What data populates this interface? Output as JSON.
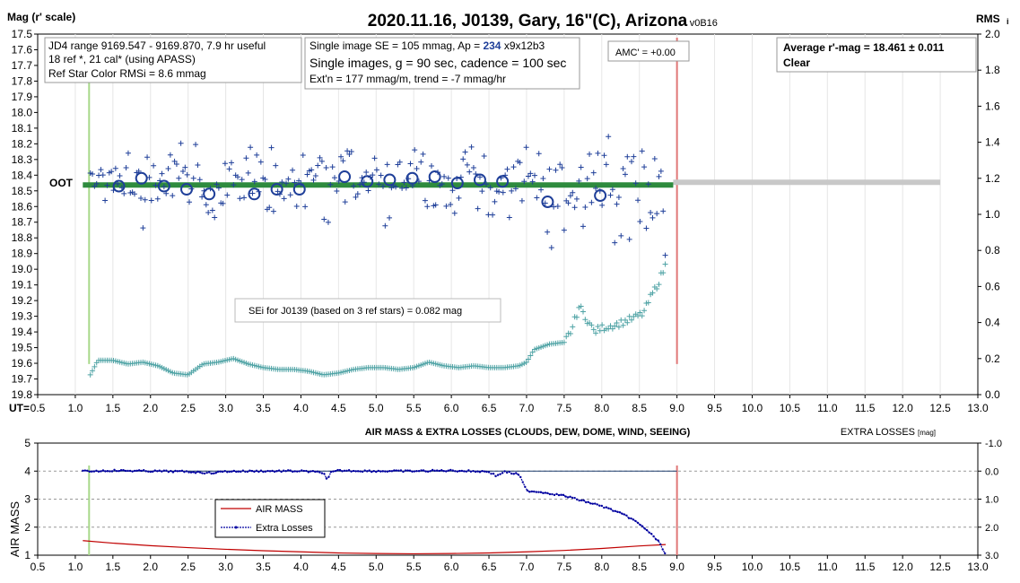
{
  "top_chart": {
    "title": "2020.11.16, J0139, Gary, 16\"(C), Arizona",
    "version": "- v0B16",
    "ylabel_left": "Mag (r' scale)",
    "ylabel_right": "RMS",
    "ylabel_right_sub": "i",
    "xlabel_prefix": "UT=",
    "info_box_1": {
      "line1": "JD4 range 9169.547 - 9169.870, 7.9 hr useful",
      "line2": "18 ref *, 21 cal* (using APASS)",
      "line3": "Ref Star Color RMSi = 8.6 mmag"
    },
    "info_box_2": {
      "line1_prefix": "Single image SE = 105 mmag, Ap = ",
      "line1_ap": "234",
      "line1_suffix": " x9x12b3",
      "line2": "Single images, g = 90 sec, cadence = 100 sec",
      "line3": "Ext'n = 177 mmag/m, trend = -7 mmag/hr"
    },
    "amc_label": "AMC' = +0.00",
    "avg_box": {
      "line1": "Average r'-mag =  18.461 ± 0.011",
      "line2": "Clear"
    },
    "oot_label": "OOT",
    "sei_label": "SEi for J0139 (based on 3 ref stars) = 0.082 mag"
  },
  "bottom_chart": {
    "title": "AIR MASS & EXTRA LOSSES (CLOUDS, DEW, DOME, WIND, SEEING)",
    "ylabel_left": "AIR MASS",
    "ylabel_right": "EXTRA LOSSES",
    "ylabel_right_unit": "[mag]",
    "legend_airmass": "AIR MASS",
    "legend_losses": "Extra Losses"
  },
  "colors": {
    "data_points": "#1f3f99",
    "rms_points": "#4fa3a5",
    "oot_band": "#2e8b3e",
    "oot_gray": "#c8c8c8",
    "start_line": "#a8d88a",
    "end_line": "#e07878",
    "airmass_line": "#c00000",
    "losses_line": "#0000a0"
  },
  "chart_data": [
    {
      "type": "scatter",
      "x_range": [
        0.5,
        13.0
      ],
      "y_left_range": [
        17.5,
        19.8
      ],
      "y_left_inverted": true,
      "y_right_range": [
        0.0,
        2.0
      ],
      "x_ticks": [
        "0.5",
        "1.0",
        "1.5",
        "2.0",
        "2.5",
        "3.0",
        "3.5",
        "4.0",
        "4.5",
        "5.0",
        "5.5",
        "6.0",
        "6.5",
        "7.0",
        "7.5",
        "8.0",
        "8.5",
        "9.0",
        "9.5",
        "10.0",
        "10.5",
        "11.0",
        "11.5",
        "12.0",
        "12.5",
        "13.0"
      ],
      "y_left_ticks": [
        "17.5",
        "17.6",
        "17.7",
        "17.8",
        "17.9",
        "18.0",
        "18.1",
        "18.2",
        "18.3",
        "18.4",
        "18.5",
        "18.6",
        "18.7",
        "18.8",
        "18.9",
        "19.0",
        "19.1",
        "19.2",
        "19.3",
        "19.4",
        "19.5",
        "19.6",
        "19.7",
        "19.8"
      ],
      "y_right_ticks": [
        "0.0",
        "0.2",
        "0.4",
        "0.6",
        "0.8",
        "1.0",
        "1.2",
        "1.4",
        "1.6",
        "1.8",
        "2.0"
      ],
      "oot_level": 18.46,
      "oot_x_range": [
        1.1,
        8.95
      ],
      "oot_gray_x_range": [
        8.95,
        12.5
      ],
      "start_ut": 1.1,
      "end_ut": 9.0,
      "averages": {
        "x": [
          1.58,
          1.88,
          2.18,
          2.48,
          2.78,
          3.38,
          3.68,
          3.98,
          4.58,
          4.88,
          5.18,
          5.48,
          5.78,
          6.08,
          6.38,
          6.68,
          7.28,
          7.98
        ],
        "y": [
          18.47,
          18.42,
          18.47,
          18.49,
          18.52,
          18.52,
          18.49,
          18.49,
          18.41,
          18.44,
          18.43,
          18.42,
          18.41,
          18.45,
          18.43,
          18.44,
          18.57,
          18.53
        ]
      },
      "rms_series": {
        "x": [
          1.2,
          1.3,
          1.5,
          1.7,
          1.9,
          2.1,
          2.3,
          2.5,
          2.7,
          2.9,
          3.1,
          3.3,
          3.5,
          3.7,
          3.9,
          4.1,
          4.3,
          4.5,
          4.7,
          4.9,
          5.1,
          5.3,
          5.5,
          5.7,
          5.9,
          6.1,
          6.3,
          6.5,
          6.7,
          6.9,
          7.0,
          7.1,
          7.3,
          7.5,
          7.6,
          7.7,
          7.8,
          7.9,
          8.0,
          8.2,
          8.4,
          8.55,
          8.65,
          8.75,
          8.85
        ],
        "y": [
          0.11,
          0.19,
          0.19,
          0.17,
          0.18,
          0.16,
          0.12,
          0.11,
          0.17,
          0.18,
          0.2,
          0.17,
          0.15,
          0.14,
          0.14,
          0.13,
          0.11,
          0.12,
          0.14,
          0.15,
          0.15,
          0.14,
          0.15,
          0.18,
          0.16,
          0.15,
          0.16,
          0.15,
          0.15,
          0.16,
          0.18,
          0.25,
          0.28,
          0.29,
          0.36,
          0.49,
          0.42,
          0.35,
          0.37,
          0.39,
          0.42,
          0.45,
          0.54,
          0.62,
          0.72
        ]
      }
    },
    {
      "type": "line",
      "x_range": [
        0.5,
        13.0
      ],
      "y_left_range": [
        1,
        5
      ],
      "y_right_range": [
        -1.0,
        3.0
      ],
      "y_right_inverted": true,
      "x_ticks": [
        "0.5",
        "1.0",
        "1.5",
        "2.0",
        "2.5",
        "3.0",
        "3.5",
        "4.0",
        "4.5",
        "5.0",
        "5.5",
        "6.0",
        "6.5",
        "7.0",
        "7.5",
        "8.0",
        "8.5",
        "9.0",
        "9.5",
        "10.0",
        "10.5",
        "11.0",
        "11.5",
        "12.0",
        "12.5",
        "13.0"
      ],
      "y_left_ticks": [
        "1",
        "2",
        "3",
        "4",
        "5"
      ],
      "y_right_ticks": [
        "-1.0",
        "0.0",
        "1.0",
        "2.0",
        "3.0"
      ],
      "series": [
        {
          "name": "AIR MASS",
          "x": [
            1.1,
            1.5,
            2.0,
            2.5,
            3.0,
            3.5,
            4.0,
            4.5,
            5.0,
            5.5,
            6.0,
            6.5,
            7.0,
            7.5,
            8.0,
            8.5,
            8.85
          ],
          "y": [
            1.52,
            1.43,
            1.34,
            1.27,
            1.21,
            1.16,
            1.12,
            1.08,
            1.06,
            1.05,
            1.06,
            1.08,
            1.12,
            1.17,
            1.24,
            1.33,
            1.38
          ]
        },
        {
          "name": "Extra Losses",
          "x": [
            1.1,
            1.5,
            2.0,
            2.5,
            2.8,
            3.0,
            3.5,
            4.0,
            4.3,
            4.35,
            4.4,
            4.5,
            5.0,
            5.5,
            6.0,
            6.5,
            6.6,
            6.7,
            6.9,
            7.0,
            7.2,
            7.5,
            7.8,
            8.0,
            8.2,
            8.4,
            8.6,
            8.75,
            8.85
          ],
          "y": [
            0.01,
            -0.02,
            0.0,
            0.02,
            0.07,
            0.01,
            0.0,
            0.0,
            0.05,
            0.35,
            0.05,
            -0.02,
            0.0,
            0.0,
            -0.02,
            0.02,
            0.18,
            0.02,
            0.12,
            0.7,
            0.75,
            0.88,
            1.1,
            1.25,
            1.45,
            1.7,
            2.1,
            2.5,
            2.95
          ]
        }
      ]
    }
  ]
}
